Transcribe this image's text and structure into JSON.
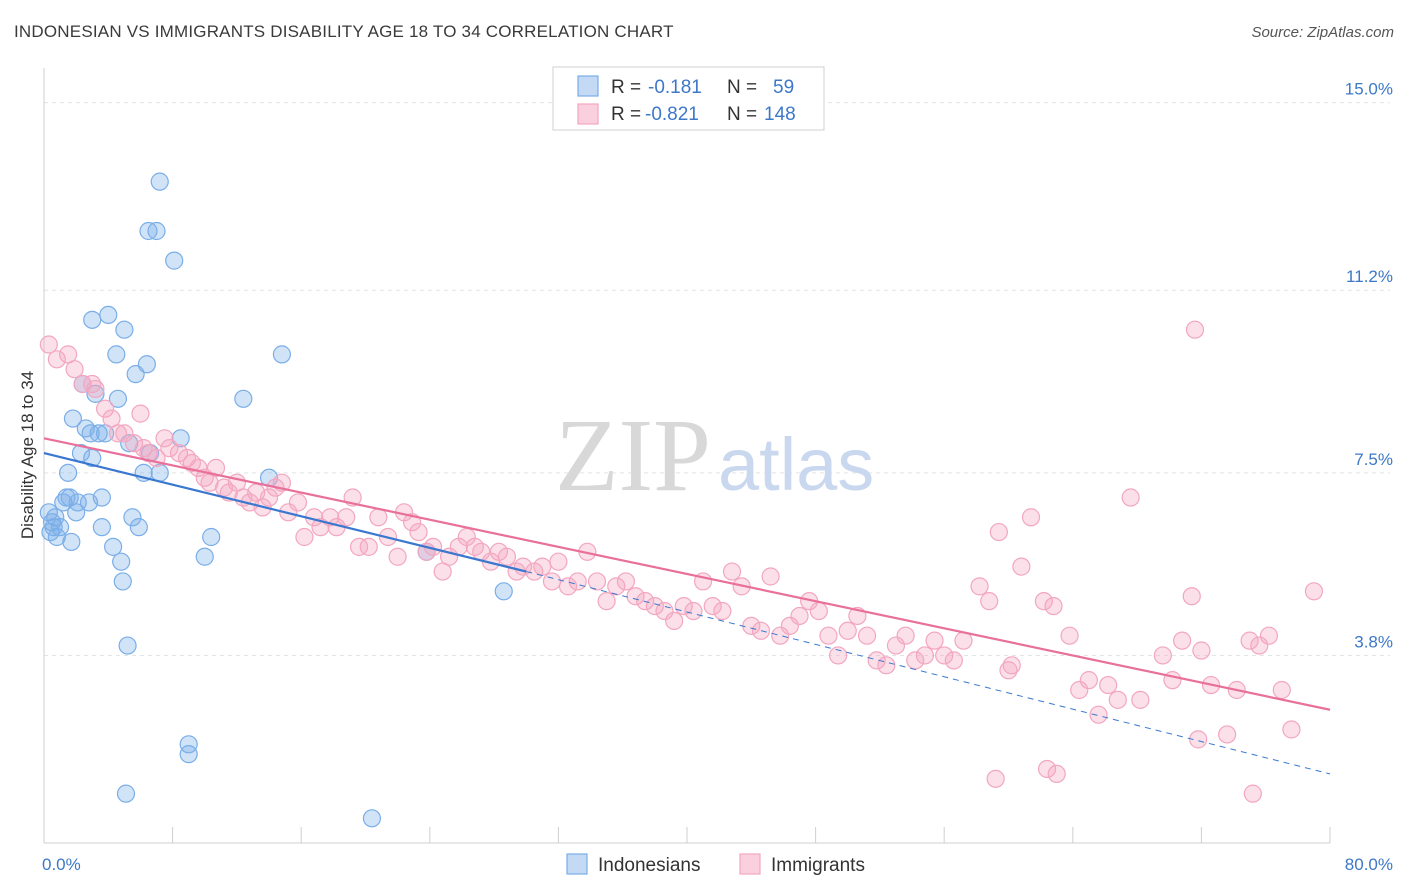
{
  "title": "INDONESIAN VS IMMIGRANTS DISABILITY AGE 18 TO 34 CORRELATION CHART",
  "source": "Source: ZipAtlas.com",
  "watermark": {
    "zip": "ZIP",
    "atlas": "atlas"
  },
  "colors": {
    "indonesians": "#7aaee8",
    "indonesians_line": "#3a78d0",
    "immigrants": "#f3a6c0",
    "immigrants_line": "#e8709a",
    "tick": "#3d78c8",
    "grid": "#e4e4e4"
  },
  "legend": {
    "r_label": "R =",
    "n_label": "N =",
    "rows": [
      {
        "series": "Indonesians",
        "r": "-0.181",
        "n": "59"
      },
      {
        "series": "Immigrants",
        "r": "-0.821",
        "n": "148"
      }
    ]
  },
  "bottom_legend": [
    "Indonesians",
    "Immigrants"
  ],
  "chart_data": {
    "type": "scatter",
    "title": "INDONESIAN VS IMMIGRANTS DISABILITY AGE 18 TO 34 CORRELATION CHART",
    "xlabel": "",
    "ylabel": "Disability Age 18 to 34",
    "xlim": [
      0,
      80
    ],
    "ylim": [
      0,
      15.5
    ],
    "x_tick_labels": [
      "0.0%",
      "80.0%"
    ],
    "y_ticks": [
      3.8,
      7.5,
      11.2,
      15.0
    ],
    "y_tick_labels": [
      "3.8%",
      "7.5%",
      "11.2%",
      "15.0%"
    ],
    "grid": true,
    "legend_position": "top-center",
    "series": [
      {
        "name": "Indonesians",
        "trend": {
          "x0": 0,
          "y0": 7.9,
          "x1": 30,
          "y1": 5.5,
          "dashed_to": [
            80,
            1.4
          ]
        },
        "points": [
          [
            0.3,
            6.7
          ],
          [
            0.5,
            6.5
          ],
          [
            0.6,
            6.4
          ],
          [
            0.7,
            6.6
          ],
          [
            0.8,
            6.2
          ],
          [
            1.0,
            6.4
          ],
          [
            1.2,
            6.9
          ],
          [
            1.4,
            7.0
          ],
          [
            1.6,
            7.0
          ],
          [
            1.7,
            6.1
          ],
          [
            1.5,
            7.5
          ],
          [
            1.8,
            8.6
          ],
          [
            2.0,
            6.7
          ],
          [
            2.1,
            6.9
          ],
          [
            2.3,
            7.9
          ],
          [
            2.4,
            9.3
          ],
          [
            2.6,
            8.4
          ],
          [
            2.8,
            6.9
          ],
          [
            3.0,
            7.8
          ],
          [
            3.0,
            10.6
          ],
          [
            3.2,
            9.1
          ],
          [
            3.4,
            8.3
          ],
          [
            3.6,
            7.0
          ],
          [
            3.6,
            6.4
          ],
          [
            3.8,
            8.3
          ],
          [
            4.0,
            10.7
          ],
          [
            4.3,
            6.0
          ],
          [
            4.5,
            9.9
          ],
          [
            4.6,
            9.0
          ],
          [
            4.8,
            5.7
          ],
          [
            4.9,
            5.3
          ],
          [
            5.0,
            10.4
          ],
          [
            5.2,
            4.0
          ],
          [
            5.3,
            8.1
          ],
          [
            5.5,
            6.6
          ],
          [
            5.7,
            9.5
          ],
          [
            5.9,
            6.4
          ],
          [
            6.2,
            7.5
          ],
          [
            6.4,
            9.7
          ],
          [
            6.6,
            7.9
          ],
          [
            7.2,
            7.5
          ],
          [
            7.2,
            13.4
          ],
          [
            6.5,
            12.4
          ],
          [
            7.0,
            12.4
          ],
          [
            8.1,
            11.8
          ],
          [
            8.5,
            8.2
          ],
          [
            9.0,
            2.0
          ],
          [
            9.0,
            1.8
          ],
          [
            10.0,
            5.8
          ],
          [
            10.4,
            6.2
          ],
          [
            12.4,
            9.0
          ],
          [
            14.0,
            7.4
          ],
          [
            14.8,
            9.9
          ],
          [
            20.4,
            0.5
          ],
          [
            23.8,
            5.9
          ],
          [
            28.6,
            5.1
          ],
          [
            5.1,
            1.0
          ],
          [
            0.4,
            6.3
          ],
          [
            2.9,
            8.3
          ]
        ]
      },
      {
        "name": "Immigrants",
        "trend": {
          "x0": 0,
          "y0": 8.2,
          "x1": 80,
          "y1": 2.7
        },
        "points": [
          [
            0.3,
            10.1
          ],
          [
            0.8,
            9.8
          ],
          [
            1.5,
            9.9
          ],
          [
            1.9,
            9.6
          ],
          [
            2.4,
            9.3
          ],
          [
            3.0,
            9.3
          ],
          [
            3.2,
            9.2
          ],
          [
            3.8,
            8.8
          ],
          [
            4.2,
            8.6
          ],
          [
            4.6,
            8.3
          ],
          [
            5.0,
            8.3
          ],
          [
            5.6,
            8.1
          ],
          [
            6.0,
            8.7
          ],
          [
            6.2,
            8.0
          ],
          [
            6.5,
            7.9
          ],
          [
            7.0,
            7.8
          ],
          [
            7.5,
            8.2
          ],
          [
            7.8,
            8.0
          ],
          [
            8.4,
            7.9
          ],
          [
            8.9,
            7.8
          ],
          [
            9.2,
            7.7
          ],
          [
            9.6,
            7.6
          ],
          [
            10.0,
            7.4
          ],
          [
            10.3,
            7.3
          ],
          [
            10.7,
            7.6
          ],
          [
            11.2,
            7.2
          ],
          [
            11.5,
            7.1
          ],
          [
            12.0,
            7.3
          ],
          [
            12.4,
            7.0
          ],
          [
            12.8,
            6.9
          ],
          [
            13.2,
            7.1
          ],
          [
            13.6,
            6.8
          ],
          [
            14.0,
            7.0
          ],
          [
            14.4,
            7.2
          ],
          [
            14.8,
            7.3
          ],
          [
            15.2,
            6.7
          ],
          [
            15.8,
            6.9
          ],
          [
            16.2,
            6.2
          ],
          [
            16.8,
            6.6
          ],
          [
            17.2,
            6.4
          ],
          [
            17.8,
            6.6
          ],
          [
            18.2,
            6.4
          ],
          [
            18.8,
            6.6
          ],
          [
            19.2,
            7.0
          ],
          [
            19.6,
            6.0
          ],
          [
            20.2,
            6.0
          ],
          [
            20.8,
            6.6
          ],
          [
            21.4,
            6.2
          ],
          [
            22.0,
            5.8
          ],
          [
            22.4,
            6.7
          ],
          [
            22.9,
            6.5
          ],
          [
            23.3,
            6.3
          ],
          [
            23.8,
            5.9
          ],
          [
            24.2,
            6.0
          ],
          [
            24.8,
            5.5
          ],
          [
            25.2,
            5.8
          ],
          [
            25.8,
            6.0
          ],
          [
            26.3,
            6.2
          ],
          [
            26.8,
            6.0
          ],
          [
            27.2,
            5.9
          ],
          [
            27.8,
            5.7
          ],
          [
            28.3,
            5.9
          ],
          [
            28.8,
            5.8
          ],
          [
            29.4,
            5.5
          ],
          [
            29.8,
            5.6
          ],
          [
            30.5,
            5.5
          ],
          [
            31.0,
            5.6
          ],
          [
            31.6,
            5.3
          ],
          [
            32.0,
            5.7
          ],
          [
            32.6,
            5.2
          ],
          [
            33.2,
            5.3
          ],
          [
            33.8,
            5.9
          ],
          [
            34.4,
            5.3
          ],
          [
            35.0,
            4.9
          ],
          [
            35.6,
            5.2
          ],
          [
            36.2,
            5.3
          ],
          [
            36.8,
            5.0
          ],
          [
            37.4,
            4.9
          ],
          [
            38.0,
            4.8
          ],
          [
            38.6,
            4.7
          ],
          [
            39.2,
            4.5
          ],
          [
            39.8,
            4.8
          ],
          [
            40.4,
            4.7
          ],
          [
            41.0,
            5.3
          ],
          [
            41.6,
            4.8
          ],
          [
            42.2,
            4.7
          ],
          [
            42.8,
            5.5
          ],
          [
            43.4,
            5.2
          ],
          [
            44.0,
            4.4
          ],
          [
            44.6,
            4.3
          ],
          [
            45.2,
            5.4
          ],
          [
            45.8,
            4.2
          ],
          [
            46.4,
            4.4
          ],
          [
            47.0,
            4.6
          ],
          [
            47.6,
            4.9
          ],
          [
            48.2,
            4.7
          ],
          [
            48.8,
            4.2
          ],
          [
            49.4,
            3.8
          ],
          [
            50.0,
            4.3
          ],
          [
            50.6,
            4.6
          ],
          [
            51.2,
            4.2
          ],
          [
            51.8,
            3.7
          ],
          [
            52.4,
            3.6
          ],
          [
            53.0,
            4.0
          ],
          [
            53.6,
            4.2
          ],
          [
            54.2,
            3.7
          ],
          [
            54.8,
            3.8
          ],
          [
            55.4,
            4.1
          ],
          [
            56.0,
            3.8
          ],
          [
            56.6,
            3.7
          ],
          [
            57.2,
            4.1
          ],
          [
            58.2,
            5.2
          ],
          [
            58.8,
            4.9
          ],
          [
            59.4,
            6.3
          ],
          [
            60.2,
            3.6
          ],
          [
            60.8,
            5.6
          ],
          [
            61.4,
            6.6
          ],
          [
            62.2,
            4.9
          ],
          [
            62.8,
            4.8
          ],
          [
            63.8,
            4.2
          ],
          [
            64.4,
            3.1
          ],
          [
            65.0,
            3.3
          ],
          [
            65.6,
            2.6
          ],
          [
            66.2,
            3.2
          ],
          [
            66.8,
            2.9
          ],
          [
            67.6,
            7.0
          ],
          [
            68.2,
            2.9
          ],
          [
            69.6,
            3.8
          ],
          [
            70.2,
            3.3
          ],
          [
            70.8,
            4.1
          ],
          [
            71.4,
            5.0
          ],
          [
            72.0,
            3.9
          ],
          [
            72.6,
            3.2
          ],
          [
            73.6,
            2.2
          ],
          [
            74.2,
            3.1
          ],
          [
            75.0,
            4.1
          ],
          [
            75.6,
            4.0
          ],
          [
            76.2,
            4.2
          ],
          [
            77.0,
            3.1
          ],
          [
            77.6,
            2.3
          ],
          [
            79.0,
            5.1
          ],
          [
            75.2,
            1.0
          ],
          [
            71.8,
            2.1
          ],
          [
            59.2,
            1.3
          ],
          [
            62.4,
            1.5
          ],
          [
            71.6,
            10.4
          ],
          [
            63.0,
            1.4
          ],
          [
            60.0,
            3.5
          ]
        ]
      }
    ]
  }
}
